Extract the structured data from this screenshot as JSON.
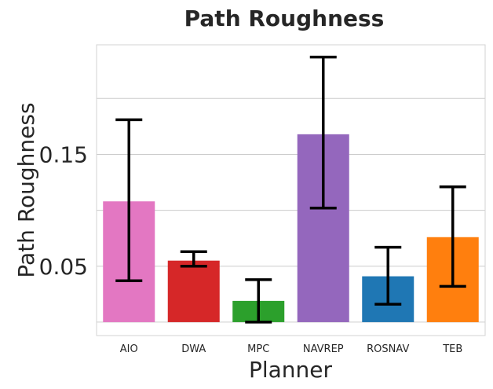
{
  "chart_data": {
    "type": "bar",
    "title": "Path Roughness",
    "xlabel": "Planner",
    "ylabel": "Path Roughness",
    "categories": [
      "AIO",
      "DWA",
      "MPC",
      "NAVREP",
      "ROSNAV",
      "TEB"
    ],
    "values": [
      0.108,
      0.055,
      0.019,
      0.168,
      0.041,
      0.076
    ],
    "error_low": [
      0.037,
      0.05,
      0.0,
      0.102,
      0.016,
      0.032
    ],
    "error_high": [
      0.181,
      0.063,
      0.038,
      0.237,
      0.067,
      0.121
    ],
    "ylim": [
      -0.012,
      0.248
    ],
    "yticks": [
      0.15,
      0.05
    ],
    "ytick_labels": [
      "0.15",
      "0.05"
    ],
    "gridlines": [
      0.0,
      0.05,
      0.1,
      0.15,
      0.2
    ],
    "grid": true,
    "colors": [
      "#e377c2",
      "#d62728",
      "#2ca02c",
      "#9467bd",
      "#1f77b4",
      "#ff7f0e"
    ],
    "error_color": "#000000"
  }
}
